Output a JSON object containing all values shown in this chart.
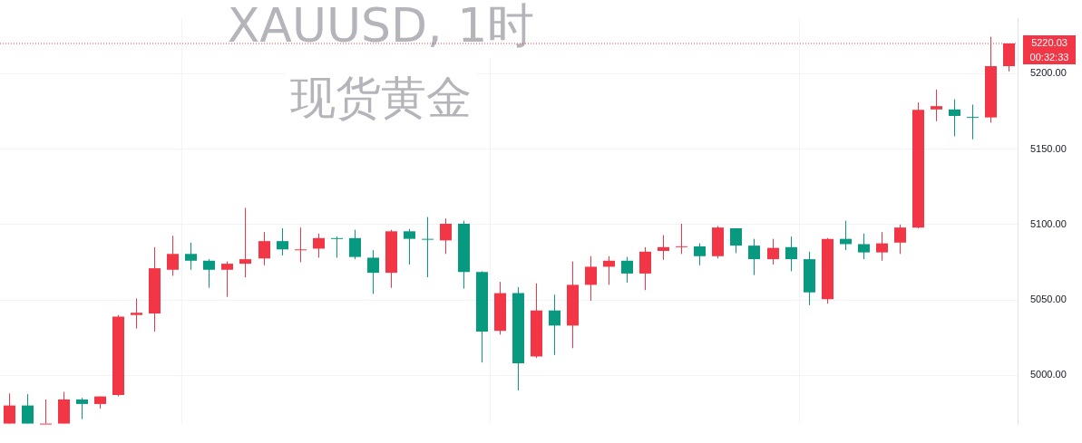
{
  "chart_data": {
    "type": "candlestick",
    "title": "XAUUSD, 1时",
    "subtitle": "现货黄金",
    "categories": [
      null,
      null,
      null,
      null,
      null,
      null,
      null,
      null,
      null,
      null,
      null,
      null,
      null,
      null,
      null,
      null,
      null,
      null,
      null,
      null,
      null,
      null,
      null,
      null,
      null,
      null,
      null,
      null,
      null,
      null,
      null,
      null,
      null,
      null,
      null,
      null,
      null,
      null,
      null,
      null,
      null,
      null,
      null,
      null,
      null,
      null,
      null,
      null,
      null,
      null,
      null,
      null,
      null,
      null,
      null,
      null
    ],
    "ohlc": [
      [
        4968,
        4988,
        4968,
        4980
      ],
      [
        4980,
        4987.5,
        4968,
        4968
      ],
      [
        4968,
        4984,
        4968,
        4968
      ],
      [
        4968,
        4989,
        4968,
        4984
      ],
      [
        4984,
        4985,
        4971,
        4981
      ],
      [
        4981,
        4986,
        4978,
        4986
      ],
      [
        4987,
        5040,
        4986,
        5039
      ],
      [
        5040,
        5051,
        5031,
        5041.5
      ],
      [
        5041,
        5085,
        5029,
        5071
      ],
      [
        5070,
        5092.5,
        5066,
        5080.5
      ],
      [
        5080.5,
        5088,
        5070,
        5076
      ],
      [
        5076,
        5077,
        5058,
        5070
      ],
      [
        5070,
        5075.5,
        5052,
        5074
      ],
      [
        5074,
        5111,
        5065,
        5077
      ],
      [
        5077.5,
        5095,
        5073,
        5089
      ],
      [
        5089,
        5097.5,
        5079.5,
        5083.5
      ],
      [
        5083,
        5098,
        5075,
        5083.5
      ],
      [
        5084,
        5094,
        5078,
        5091
      ],
      [
        5091,
        5092,
        5078,
        5090.5
      ],
      [
        5091,
        5096.5,
        5077,
        5078.5
      ],
      [
        5078,
        5083,
        5054,
        5068
      ],
      [
        5068,
        5096.5,
        5058,
        5095.5
      ],
      [
        5095.5,
        5097,
        5073.5,
        5090.5
      ],
      [
        5090.5,
        5105,
        5065,
        5090
      ],
      [
        5089.5,
        5104,
        5080.5,
        5100.5
      ],
      [
        5100.5,
        5102.5,
        5057.5,
        5068.5
      ],
      [
        5068.5,
        5069,
        5008.5,
        5029
      ],
      [
        5029.5,
        5062,
        5027,
        5054.5
      ],
      [
        5054.5,
        5058.5,
        4990,
        5008
      ],
      [
        5012.5,
        5061,
        5011.5,
        5043
      ],
      [
        5043,
        5053.5,
        5013.5,
        5033
      ],
      [
        5033,
        5075.5,
        5018,
        5060
      ],
      [
        5060,
        5079,
        5049.5,
        5072
      ],
      [
        5072,
        5079,
        5060,
        5076
      ],
      [
        5076,
        5078.5,
        5061.5,
        5067.5
      ],
      [
        5067.5,
        5085,
        5056.5,
        5082
      ],
      [
        5082.5,
        5093,
        5076.5,
        5085
      ],
      [
        5085.5,
        5100.5,
        5080.5,
        5085.6
      ],
      [
        5085.5,
        5087.5,
        5073,
        5079
      ],
      [
        5079,
        5099,
        5077.5,
        5098
      ],
      [
        5097.5,
        5097.6,
        5081,
        5086
      ],
      [
        5086,
        5090.5,
        5066.5,
        5077
      ],
      [
        5077,
        5090.5,
        5073.5,
        5084.5
      ],
      [
        5085,
        5092,
        5069,
        5077
      ],
      [
        5077,
        5082,
        5046.5,
        5055
      ],
      [
        5050.5,
        5091,
        5047.5,
        5090.5
      ],
      [
        5090.5,
        5102.5,
        5083,
        5087
      ],
      [
        5087,
        5094,
        5077,
        5081.5
      ],
      [
        5081.5,
        5095,
        5076,
        5087.5
      ],
      [
        5088,
        5100,
        5080.5,
        5098
      ],
      [
        5098,
        5181,
        5097.5,
        5176
      ],
      [
        5176.3,
        5189.5,
        5168.5,
        5178.5
      ],
      [
        5176.3,
        5183,
        5158.5,
        5172
      ],
      [
        5171.3,
        5179.5,
        5156.5,
        5171
      ],
      [
        5171,
        5224.5,
        5167.5,
        5205
      ],
      [
        5205,
        5220.03,
        5201.5,
        5220.03
      ]
    ],
    "colors": [
      "#f23645",
      "#089981",
      "#f23645",
      "#f23645",
      "#089981",
      "#f23645",
      "#f23645",
      "#f23645",
      "#f23645",
      "#f23645",
      "#089981",
      "#089981",
      "#f23645",
      "#f23645",
      "#f23645",
      "#089981",
      "#f23645",
      "#f23645",
      "#089981",
      "#089981",
      "#089981",
      "#f23645",
      "#089981",
      "#089981",
      "#f23645",
      "#089981",
      "#089981",
      "#f23645",
      "#089981",
      "#f23645",
      "#089981",
      "#f23645",
      "#f23645",
      "#f23645",
      "#089981",
      "#f23645",
      "#f23645",
      "#f23645",
      "#089981",
      "#f23645",
      "#089981",
      "#089981",
      "#f23645",
      "#089981",
      "#089981",
      "#f23645",
      "#089981",
      "#089981",
      "#f23645",
      "#f23645",
      "#f23645",
      "#f23645",
      "#089981",
      "#089981",
      "#f23645",
      "#f23645"
    ],
    "ylim": [
      4967.5,
      5236.5
    ],
    "yticks": [
      {
        "value": 5000,
        "label": "5000.00"
      },
      {
        "value": 5050,
        "label": "5050.00"
      },
      {
        "value": 5100,
        "label": "5100.00"
      },
      {
        "value": 5150,
        "label": "5150.00"
      },
      {
        "value": 5200,
        "label": "5200.00"
      }
    ],
    "ref_lines": [
      {
        "axis": "y",
        "value": 5220.03,
        "label": "5220.03",
        "color": "#f23645",
        "line_style": "dotted"
      }
    ],
    "annotations": [
      "00:32:33"
    ],
    "grid": true
  }
}
